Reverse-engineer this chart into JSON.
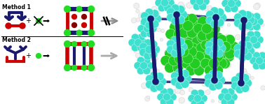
{
  "method1_label": "Method 1",
  "method2_label": "Method 2",
  "navy": "#1a1a6e",
  "red": "#cc0000",
  "green": "#22dd22",
  "cyan": "#40e0d0",
  "bright_green": "#22cc22",
  "white_mol": "#f0f0f0",
  "title_fontsize": 5.5
}
